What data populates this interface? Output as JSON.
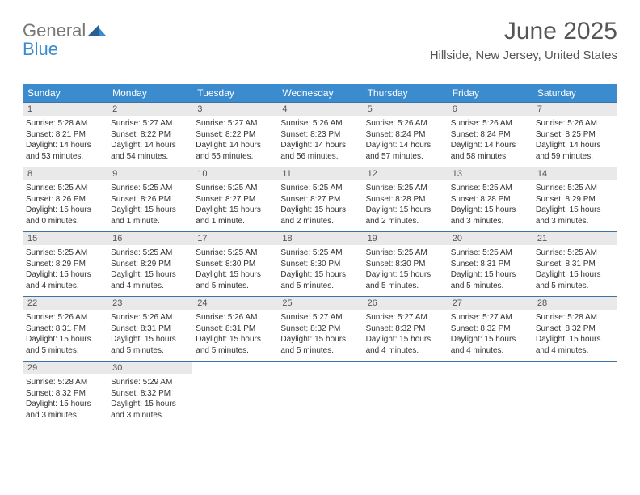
{
  "logo": {
    "general": "General",
    "blue": "Blue"
  },
  "title": {
    "month": "June 2025",
    "location": "Hillside, New Jersey, United States"
  },
  "columns": [
    "Sunday",
    "Monday",
    "Tuesday",
    "Wednesday",
    "Thursday",
    "Friday",
    "Saturday"
  ],
  "style": {
    "header_bg": "#3b8bcf",
    "header_text": "#ffffff",
    "row_border": "#3b73a8",
    "daynum_bg": "#e9e9e9",
    "text_color": "#333333"
  },
  "days": [
    {
      "n": "1",
      "sr": "5:28 AM",
      "ss": "8:21 PM",
      "dl": "14 hours and 53 minutes."
    },
    {
      "n": "2",
      "sr": "5:27 AM",
      "ss": "8:22 PM",
      "dl": "14 hours and 54 minutes."
    },
    {
      "n": "3",
      "sr": "5:27 AM",
      "ss": "8:22 PM",
      "dl": "14 hours and 55 minutes."
    },
    {
      "n": "4",
      "sr": "5:26 AM",
      "ss": "8:23 PM",
      "dl": "14 hours and 56 minutes."
    },
    {
      "n": "5",
      "sr": "5:26 AM",
      "ss": "8:24 PM",
      "dl": "14 hours and 57 minutes."
    },
    {
      "n": "6",
      "sr": "5:26 AM",
      "ss": "8:24 PM",
      "dl": "14 hours and 58 minutes."
    },
    {
      "n": "7",
      "sr": "5:26 AM",
      "ss": "8:25 PM",
      "dl": "14 hours and 59 minutes."
    },
    {
      "n": "8",
      "sr": "5:25 AM",
      "ss": "8:26 PM",
      "dl": "15 hours and 0 minutes."
    },
    {
      "n": "9",
      "sr": "5:25 AM",
      "ss": "8:26 PM",
      "dl": "15 hours and 1 minute."
    },
    {
      "n": "10",
      "sr": "5:25 AM",
      "ss": "8:27 PM",
      "dl": "15 hours and 1 minute."
    },
    {
      "n": "11",
      "sr": "5:25 AM",
      "ss": "8:27 PM",
      "dl": "15 hours and 2 minutes."
    },
    {
      "n": "12",
      "sr": "5:25 AM",
      "ss": "8:28 PM",
      "dl": "15 hours and 2 minutes."
    },
    {
      "n": "13",
      "sr": "5:25 AM",
      "ss": "8:28 PM",
      "dl": "15 hours and 3 minutes."
    },
    {
      "n": "14",
      "sr": "5:25 AM",
      "ss": "8:29 PM",
      "dl": "15 hours and 3 minutes."
    },
    {
      "n": "15",
      "sr": "5:25 AM",
      "ss": "8:29 PM",
      "dl": "15 hours and 4 minutes."
    },
    {
      "n": "16",
      "sr": "5:25 AM",
      "ss": "8:29 PM",
      "dl": "15 hours and 4 minutes."
    },
    {
      "n": "17",
      "sr": "5:25 AM",
      "ss": "8:30 PM",
      "dl": "15 hours and 5 minutes."
    },
    {
      "n": "18",
      "sr": "5:25 AM",
      "ss": "8:30 PM",
      "dl": "15 hours and 5 minutes."
    },
    {
      "n": "19",
      "sr": "5:25 AM",
      "ss": "8:30 PM",
      "dl": "15 hours and 5 minutes."
    },
    {
      "n": "20",
      "sr": "5:25 AM",
      "ss": "8:31 PM",
      "dl": "15 hours and 5 minutes."
    },
    {
      "n": "21",
      "sr": "5:25 AM",
      "ss": "8:31 PM",
      "dl": "15 hours and 5 minutes."
    },
    {
      "n": "22",
      "sr": "5:26 AM",
      "ss": "8:31 PM",
      "dl": "15 hours and 5 minutes."
    },
    {
      "n": "23",
      "sr": "5:26 AM",
      "ss": "8:31 PM",
      "dl": "15 hours and 5 minutes."
    },
    {
      "n": "24",
      "sr": "5:26 AM",
      "ss": "8:31 PM",
      "dl": "15 hours and 5 minutes."
    },
    {
      "n": "25",
      "sr": "5:27 AM",
      "ss": "8:32 PM",
      "dl": "15 hours and 5 minutes."
    },
    {
      "n": "26",
      "sr": "5:27 AM",
      "ss": "8:32 PM",
      "dl": "15 hours and 4 minutes."
    },
    {
      "n": "27",
      "sr": "5:27 AM",
      "ss": "8:32 PM",
      "dl": "15 hours and 4 minutes."
    },
    {
      "n": "28",
      "sr": "5:28 AM",
      "ss": "8:32 PM",
      "dl": "15 hours and 4 minutes."
    },
    {
      "n": "29",
      "sr": "5:28 AM",
      "ss": "8:32 PM",
      "dl": "15 hours and 3 minutes."
    },
    {
      "n": "30",
      "sr": "5:29 AM",
      "ss": "8:32 PM",
      "dl": "15 hours and 3 minutes."
    }
  ],
  "labels": {
    "sunrise": "Sunrise: ",
    "sunset": "Sunset: ",
    "daylight": "Daylight: "
  }
}
